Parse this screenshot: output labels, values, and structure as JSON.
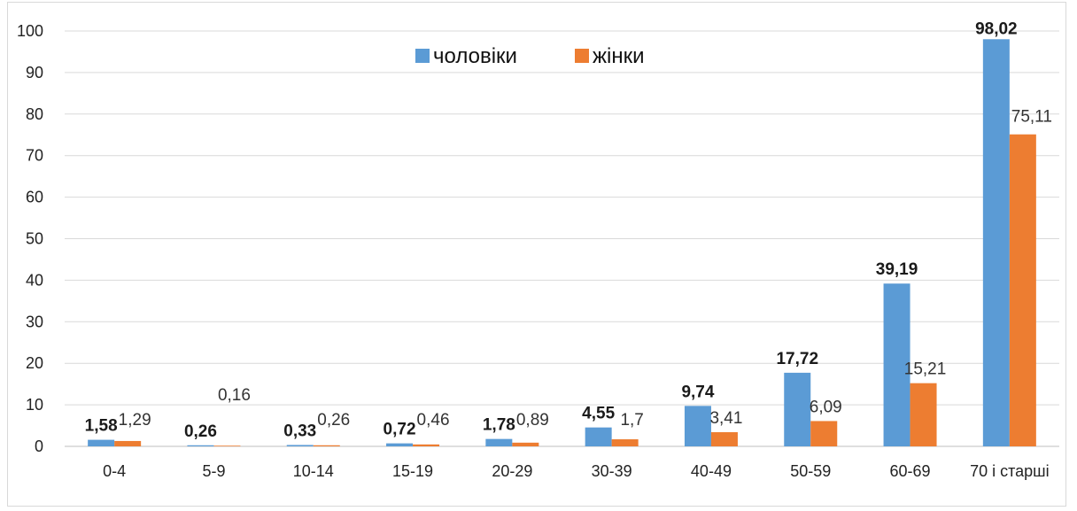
{
  "chart_data": {
    "type": "bar",
    "categories": [
      "0-4",
      "5-9",
      "10-14",
      "15-19",
      "20-29",
      "30-39",
      "40-49",
      "50-59",
      "60-69",
      "70 і старші"
    ],
    "series": [
      {
        "name": "чоловіки",
        "color": "#5b9bd5",
        "values": [
          1.58,
          0.26,
          0.33,
          0.72,
          1.78,
          4.55,
          9.74,
          17.72,
          39.19,
          98.02
        ],
        "labels": [
          "1,58",
          "0,26",
          "0,33",
          "0,72",
          "1,78",
          "4,55",
          "9,74",
          "17,72",
          "39,19",
          "98,02"
        ]
      },
      {
        "name": "жінки",
        "color": "#ed7d31",
        "values": [
          1.29,
          0.16,
          0.26,
          0.46,
          0.89,
          1.7,
          3.41,
          6.09,
          15.21,
          75.11
        ],
        "labels": [
          "1,29",
          "0,16",
          "0,26",
          "0,46",
          "0,89",
          "1,7",
          "3,41",
          "6,09",
          "15,21",
          "75,11"
        ]
      }
    ],
    "yticks": [
      "0",
      "10",
      "20",
      "30",
      "40",
      "50",
      "60",
      "70",
      "80",
      "90",
      "100"
    ],
    "ylim": [
      0,
      100
    ],
    "grid": true,
    "legend_position": "top-center",
    "title": "",
    "xlabel": "",
    "ylabel": ""
  }
}
